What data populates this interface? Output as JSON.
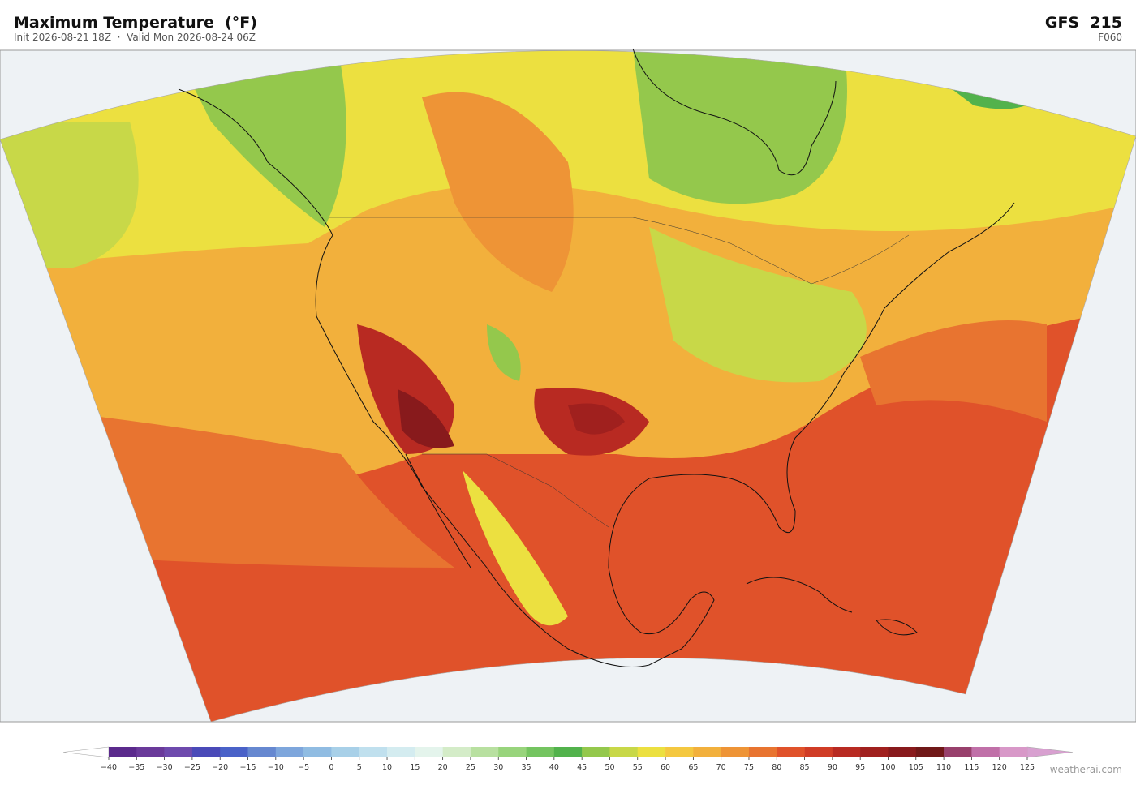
{
  "header": {
    "title": "Maximum Temperature  (°F)",
    "subtitle": "Init 2026-08-21 18Z  ·  Valid Mon 2026-08-24 06Z",
    "model": "GFS  215",
    "forecast_hour": "F060"
  },
  "colorbar": {
    "ticks": [
      {
        "value": -40,
        "label": "−40"
      },
      {
        "value": -35,
        "label": "−35"
      },
      {
        "value": -30,
        "label": "−30"
      },
      {
        "value": -25,
        "label": "−25"
      },
      {
        "value": -20,
        "label": "−20"
      },
      {
        "value": -15,
        "label": "−15"
      },
      {
        "value": -10,
        "label": "−10"
      },
      {
        "value": -5,
        "label": "−5"
      },
      0,
      5,
      10,
      15,
      20,
      25,
      30,
      35,
      40,
      45,
      50,
      55,
      60,
      65,
      70,
      75,
      80,
      85,
      90,
      95,
      100,
      105,
      110,
      115,
      120,
      125
    ],
    "colors": [
      "#5b2a8c",
      "#6a3a9a",
      "#6e4aad",
      "#4a4ab8",
      "#4a62c8",
      "#6688d0",
      "#7ea6dc",
      "#90bce2",
      "#a8d0e8",
      "#c0e0ee",
      "#d4ecf0",
      "#e4f4ec",
      "#d4ecc8",
      "#b8e0a0",
      "#98d47c",
      "#74c460",
      "#52b24c",
      "#94c84c",
      "#c8d848",
      "#ece040",
      "#f4c840",
      "#f2b03c",
      "#ee9436",
      "#e87430",
      "#e0522a",
      "#d03c26",
      "#b82a22",
      "#a0201e",
      "#881a1c",
      "#701818",
      "#98406c",
      "#c070a8",
      "#d898c8"
    ],
    "under_color": "#ffffff",
    "over_color": "#d8a0d0"
  },
  "footer": {
    "credit": "weatherai.com"
  }
}
